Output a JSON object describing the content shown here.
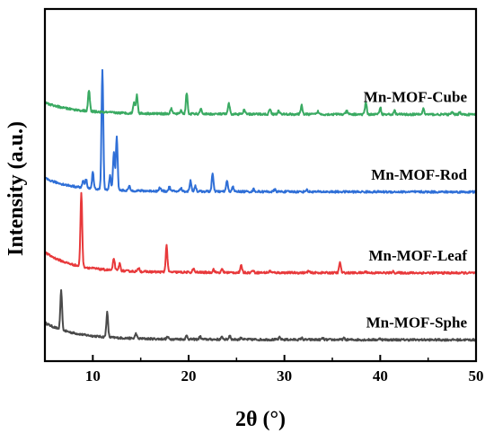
{
  "chart_data": {
    "type": "line",
    "title": "",
    "xlabel": "2θ (°)",
    "ylabel": "Intensity (a.u.)",
    "xlim": [
      5,
      50
    ],
    "x_ticks": [
      10,
      20,
      30,
      40,
      50
    ],
    "x_tick_labels": [
      "10",
      "20",
      "30",
      "40",
      "50"
    ],
    "y_ticks_shown": false,
    "grid": false,
    "legend": "labels placed next to each curve on the right",
    "y_units": "normalized intensity (arbitrary units, offset stacked)",
    "series": [
      {
        "name": "Mn-MOF-Sphe",
        "color": "#4a4a4a",
        "baseline": 0.06,
        "start_rise": 0.045,
        "peaks": [
          [
            6.7,
            0.11
          ],
          [
            11.5,
            0.07
          ],
          [
            14.5,
            0.014
          ],
          [
            17.8,
            0.006
          ],
          [
            19.8,
            0.01
          ],
          [
            21.2,
            0.008
          ],
          [
            23.5,
            0.007
          ],
          [
            24.3,
            0.012
          ],
          [
            25.5,
            0.006
          ],
          [
            29.5,
            0.006
          ],
          [
            31.8,
            0.005
          ],
          [
            34.0,
            0.004
          ],
          [
            36.2,
            0.004
          ],
          [
            40.0,
            0.004
          ]
        ]
      },
      {
        "name": "Mn-MOF-Leaf",
        "color": "#e8393b",
        "baseline": 0.25,
        "start_rise": 0.055,
        "peaks": [
          [
            8.8,
            0.21
          ],
          [
            12.2,
            0.034
          ],
          [
            12.8,
            0.02
          ],
          [
            14.8,
            0.01
          ],
          [
            17.7,
            0.075
          ],
          [
            20.5,
            0.01
          ],
          [
            22.6,
            0.009
          ],
          [
            23.5,
            0.009
          ],
          [
            25.5,
            0.02
          ],
          [
            26.7,
            0.007
          ],
          [
            28.5,
            0.005
          ],
          [
            32.5,
            0.005
          ],
          [
            35.8,
            0.03
          ],
          [
            38.5,
            0.004
          ],
          [
            41.3,
            0.004
          ]
        ]
      },
      {
        "name": "Mn-MOF-Rod",
        "color": "#2f6fd7",
        "baseline": 0.48,
        "start_rise": 0.035,
        "peaks": [
          [
            9.0,
            0.02
          ],
          [
            9.3,
            0.025
          ],
          [
            10.0,
            0.045
          ],
          [
            11.0,
            0.34
          ],
          [
            11.8,
            0.04
          ],
          [
            12.2,
            0.11
          ],
          [
            12.5,
            0.15
          ],
          [
            13.8,
            0.012
          ],
          [
            17.0,
            0.01
          ],
          [
            18.0,
            0.012
          ],
          [
            19.2,
            0.009
          ],
          [
            20.2,
            0.03
          ],
          [
            20.7,
            0.015
          ],
          [
            22.5,
            0.05
          ],
          [
            24.0,
            0.03
          ],
          [
            24.6,
            0.014
          ],
          [
            26.8,
            0.007
          ],
          [
            29.0,
            0.006
          ],
          [
            32.3,
            0.006
          ]
        ]
      },
      {
        "name": "Mn-MOF-Cube",
        "color": "#3aaa62",
        "baseline": 0.7,
        "start_rise": 0.03,
        "peaks": [
          [
            9.6,
            0.06
          ],
          [
            14.3,
            0.032
          ],
          [
            14.6,
            0.052
          ],
          [
            18.2,
            0.015
          ],
          [
            19.2,
            0.01
          ],
          [
            19.8,
            0.06
          ],
          [
            21.3,
            0.014
          ],
          [
            24.2,
            0.03
          ],
          [
            25.8,
            0.012
          ],
          [
            28.5,
            0.016
          ],
          [
            29.4,
            0.01
          ],
          [
            31.8,
            0.025
          ],
          [
            33.5,
            0.008
          ],
          [
            36.5,
            0.01
          ],
          [
            38.5,
            0.035
          ],
          [
            40.0,
            0.02
          ],
          [
            41.5,
            0.01
          ],
          [
            44.5,
            0.016
          ],
          [
            47.5,
            0.006
          ],
          [
            48.3,
            0.008
          ]
        ]
      }
    ]
  }
}
